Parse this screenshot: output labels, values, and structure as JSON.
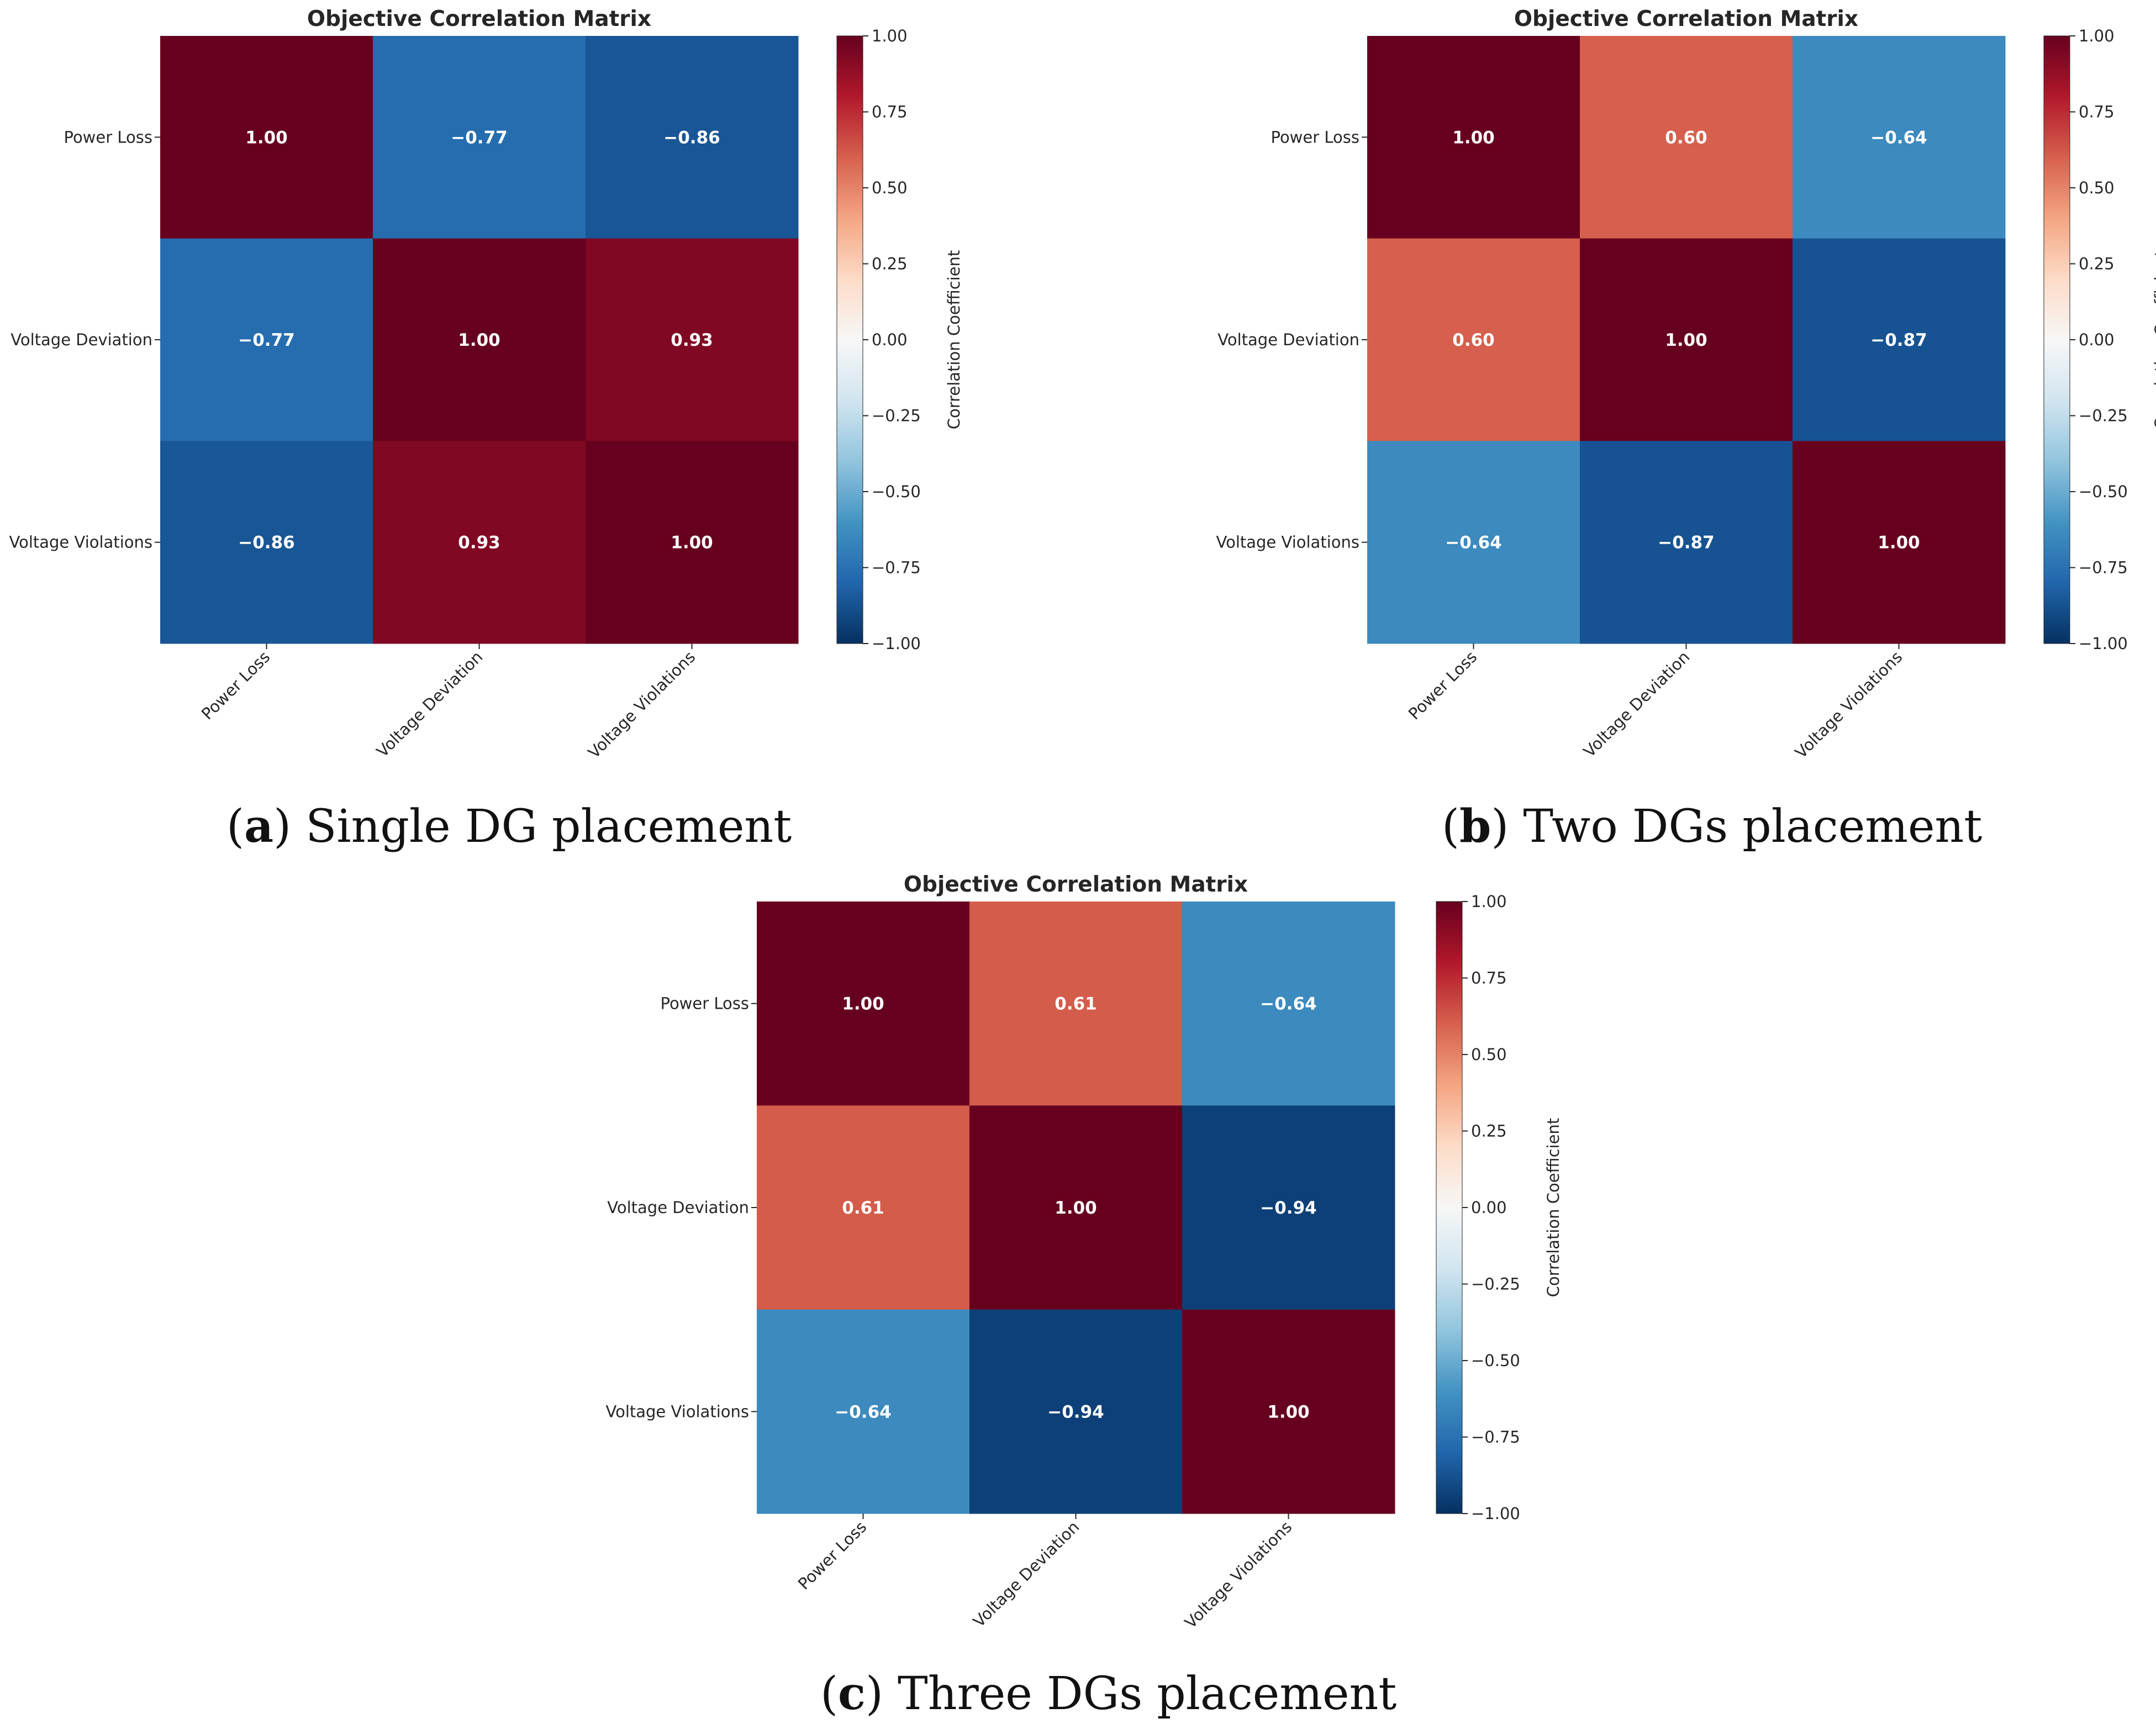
{
  "figure": {
    "panels": [
      {
        "caption_label": "a",
        "caption_text": "Single DG placement"
      },
      {
        "caption_label": "b",
        "caption_text": "Two DGs placement"
      },
      {
        "caption_label": "c",
        "caption_text": "Three DGs placement"
      }
    ]
  },
  "colors": {
    "text": "#262626",
    "colormap_stops": [
      "#053061",
      "#2166ac",
      "#4393c3",
      "#92c5de",
      "#d1e5f0",
      "#f7f7f7",
      "#fddbc7",
      "#f4a582",
      "#d6604d",
      "#b2182b",
      "#67001f"
    ]
  },
  "chart_data": [
    {
      "type": "heatmap",
      "title": "Objective Correlation Matrix",
      "row_labels": [
        "Power Loss",
        "Voltage Deviation",
        "Voltage Violations"
      ],
      "col_labels": [
        "Power Loss",
        "Voltage Deviation",
        "Voltage Violations"
      ],
      "values": [
        [
          1.0,
          -0.77,
          -0.86
        ],
        [
          -0.77,
          1.0,
          0.93
        ],
        [
          -0.86,
          0.93,
          1.0
        ]
      ],
      "value_labels": [
        [
          "1.00",
          "−0.77",
          "−0.86"
        ],
        [
          "−0.77",
          "1.00",
          "0.93"
        ],
        [
          "−0.86",
          "0.93",
          "1.00"
        ]
      ],
      "colorbar": {
        "label": "Correlation Coefficient",
        "range": [
          -1,
          1
        ],
        "ticks": [
          "1.00",
          "0.75",
          "0.50",
          "0.25",
          "0.00",
          "−0.25",
          "−0.50",
          "−0.75",
          "−1.00"
        ]
      }
    },
    {
      "type": "heatmap",
      "title": "Objective Correlation Matrix",
      "row_labels": [
        "Power Loss",
        "Voltage Deviation",
        "Voltage Violations"
      ],
      "col_labels": [
        "Power Loss",
        "Voltage Deviation",
        "Voltage Violations"
      ],
      "values": [
        [
          1.0,
          0.6,
          -0.64
        ],
        [
          0.6,
          1.0,
          -0.87
        ],
        [
          -0.64,
          -0.87,
          1.0
        ]
      ],
      "value_labels": [
        [
          "1.00",
          "0.60",
          "−0.64"
        ],
        [
          "0.60",
          "1.00",
          "−0.87"
        ],
        [
          "−0.64",
          "−0.87",
          "1.00"
        ]
      ],
      "colorbar": {
        "label": "Correlation Coefficient",
        "range": [
          -1,
          1
        ],
        "ticks": [
          "1.00",
          "0.75",
          "0.50",
          "0.25",
          "0.00",
          "−0.25",
          "−0.50",
          "−0.75",
          "−1.00"
        ]
      }
    },
    {
      "type": "heatmap",
      "title": "Objective Correlation Matrix",
      "row_labels": [
        "Power Loss",
        "Voltage Deviation",
        "Voltage Violations"
      ],
      "col_labels": [
        "Power Loss",
        "Voltage Deviation",
        "Voltage Violations"
      ],
      "values": [
        [
          1.0,
          0.61,
          -0.64
        ],
        [
          0.61,
          1.0,
          -0.94
        ],
        [
          -0.64,
          -0.94,
          1.0
        ]
      ],
      "value_labels": [
        [
          "1.00",
          "0.61",
          "−0.64"
        ],
        [
          "0.61",
          "1.00",
          "−0.94"
        ],
        [
          "−0.64",
          "−0.94",
          "1.00"
        ]
      ],
      "colorbar": {
        "label": "Correlation Coefficient",
        "range": [
          -1,
          1
        ],
        "ticks": [
          "1.00",
          "0.75",
          "0.50",
          "0.25",
          "0.00",
          "−0.25",
          "−0.50",
          "−0.75",
          "−1.00"
        ]
      }
    }
  ]
}
